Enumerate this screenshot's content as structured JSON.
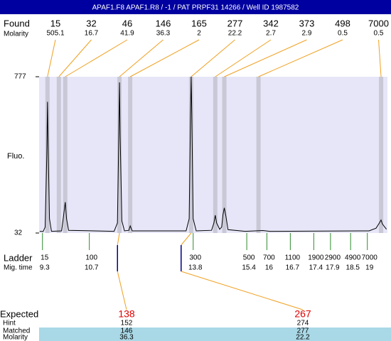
{
  "header": {
    "title": "APAF1.F8  APAF1.R8 / -1  / PAT PRPF31 14266 / Well ID 1987582"
  },
  "chart_data": {
    "type": "electropherogram",
    "y_label": "Fluo.",
    "ylim": [
      32,
      777
    ],
    "yticks": [
      32,
      777
    ],
    "xlim": [
      9.2,
      19.6
    ],
    "found": {
      "label": "Found",
      "molarity_label": "Molarity",
      "sizes": [
        15,
        32,
        46,
        146,
        165,
        277,
        342,
        373,
        498,
        7000
      ],
      "molarity": [
        505.1,
        16.7,
        41.9,
        36.3,
        2,
        22.2,
        2.7,
        2.9,
        0.5,
        0.5
      ],
      "x": [
        9.45,
        9.79,
        9.98,
        11.6,
        11.92,
        13.74,
        14.46,
        14.73,
        15.75,
        19.41
      ]
    },
    "ladder": {
      "label": "Ladder",
      "time_label": "Mig. time",
      "color": "#2e8b2e",
      "sizes": [
        15,
        100,
        300,
        500,
        700,
        1100,
        1900,
        2900,
        4900,
        7000
      ],
      "x": [
        9.3,
        10.7,
        13.8,
        15.4,
        16,
        16.7,
        17.4,
        17.9,
        18.5,
        19
      ]
    },
    "trace": {
      "color": "#000000",
      "x": [
        9.22,
        9.32,
        9.38,
        9.43,
        9.45,
        9.47,
        9.51,
        9.57,
        9.87,
        9.91,
        9.98,
        10.02,
        10.08,
        11.44,
        11.54,
        11.58,
        11.6,
        11.62,
        11.67,
        11.75,
        11.88,
        11.92,
        11.98,
        13.59,
        13.68,
        13.72,
        13.74,
        13.76,
        13.8,
        13.89,
        14.35,
        14.42,
        14.46,
        14.5,
        14.59,
        14.65,
        14.69,
        14.73,
        14.78,
        14.84,
        15.35,
        15.88,
        16.09,
        19.05,
        19.26,
        19.36,
        19.41,
        19.45,
        19.57
      ],
      "values": [
        40,
        39,
        60,
        400,
        657,
        450,
        100,
        40,
        42,
        90,
        179,
        100,
        45,
        40,
        80,
        500,
        750,
        500,
        90,
        42,
        45,
        66,
        42,
        42,
        100,
        600,
        777,
        600,
        100,
        42,
        45,
        80,
        117,
        80,
        50,
        60,
        120,
        152,
        110,
        48,
        40,
        44,
        40,
        42,
        55,
        80,
        94,
        75,
        50
      ]
    },
    "expected": {
      "labels": [
        "Expected",
        "Hint",
        "Matched",
        "Molarity"
      ],
      "x": [
        11.54,
        13.44
      ],
      "expected": [
        138,
        267
      ],
      "hint": [
        152,
        274
      ],
      "matched": [
        146,
        277
      ],
      "molarity": [
        36.3,
        22.2
      ]
    }
  }
}
